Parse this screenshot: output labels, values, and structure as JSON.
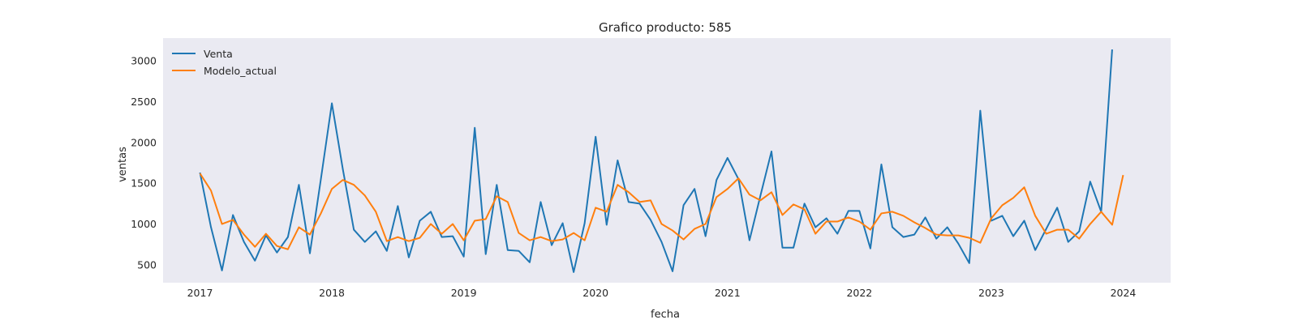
{
  "chart_data": {
    "type": "line",
    "title": "Grafico producto: 585",
    "xlabel": "fecha",
    "ylabel": "ventas",
    "ylim": [
      280,
      3280
    ],
    "yticks": [
      500,
      1000,
      1500,
      2000,
      2500,
      3000
    ],
    "xlim": [
      2016.72,
      2024.36
    ],
    "xticks": [
      {
        "value": 2017,
        "label": "2017"
      },
      {
        "value": 2018,
        "label": "2018"
      },
      {
        "value": 2019,
        "label": "2019"
      },
      {
        "value": 2020,
        "label": "2020"
      },
      {
        "value": 2021,
        "label": "2021"
      },
      {
        "value": 2022,
        "label": "2022"
      },
      {
        "value": 2023,
        "label": "2023"
      },
      {
        "value": 2024,
        "label": "2024"
      }
    ],
    "grid": false,
    "legend_position": "top-left",
    "x_start": 2017.0,
    "x_step_months": 1,
    "series": [
      {
        "name": "Venta",
        "color": "#1f77b4",
        "values": [
          1630,
          960,
          430,
          1110,
          780,
          550,
          860,
          650,
          840,
          1480,
          640,
          1550,
          2480,
          1670,
          930,
          780,
          910,
          670,
          1220,
          590,
          1040,
          1150,
          840,
          850,
          600,
          2180,
          630,
          1480,
          680,
          670,
          530,
          1270,
          740,
          1010,
          410,
          1010,
          2070,
          990,
          1780,
          1270,
          1250,
          1050,
          780,
          420,
          1230,
          1430,
          850,
          1540,
          1810,
          1550,
          800,
          1350,
          1890,
          710,
          710,
          1250,
          960,
          1070,
          880,
          1160,
          1160,
          700,
          1730,
          960,
          840,
          870,
          1080,
          820,
          960,
          760,
          520,
          2390,
          1040,
          1100,
          850,
          1040,
          680,
          940,
          1200,
          780,
          910,
          1520,
          1150,
          3140
        ]
      },
      {
        "name": "Modelo_actual",
        "color": "#ff7f0e",
        "values": [
          1620,
          1410,
          1000,
          1050,
          870,
          720,
          880,
          730,
          690,
          960,
          870,
          1130,
          1430,
          1540,
          1480,
          1350,
          1150,
          790,
          840,
          790,
          830,
          1000,
          880,
          1000,
          800,
          1040,
          1060,
          1340,
          1270,
          890,
          800,
          840,
          790,
          810,
          890,
          800,
          1200,
          1150,
          1480,
          1390,
          1270,
          1290,
          1000,
          920,
          810,
          940,
          1000,
          1330,
          1430,
          1560,
          1360,
          1290,
          1390,
          1110,
          1240,
          1180,
          880,
          1030,
          1030,
          1080,
          1030,
          930,
          1130,
          1150,
          1100,
          1020,
          950,
          870,
          860,
          860,
          830,
          770,
          1070,
          1230,
          1320,
          1450,
          1100,
          880,
          930,
          930,
          820,
          1000,
          1150,
          990,
          1600
        ]
      }
    ]
  }
}
